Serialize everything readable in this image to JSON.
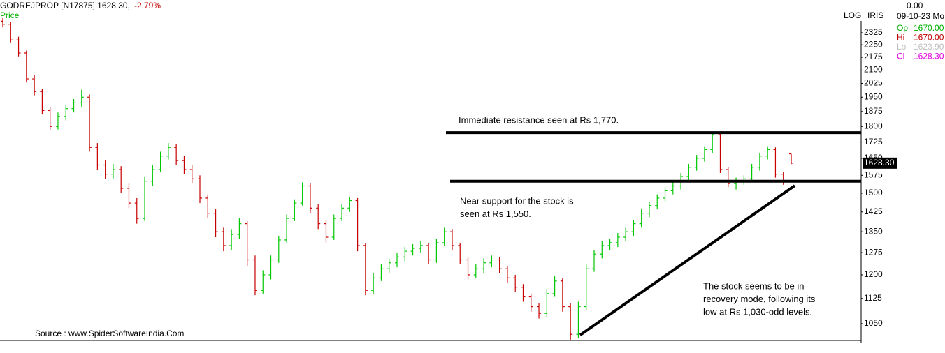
{
  "chart_data": {
    "type": "ohlc",
    "title": "GODREJPROP [N17875] 1628.30,",
    "change": "-2.79%",
    "series_name": "Price",
    "scale_label": "LOG",
    "indicator_label": "IRIS",
    "log_scale": true,
    "up_color": "#00c800",
    "down_color": "#c80000",
    "ylim": [
      1003,
      2543
    ],
    "yticks": [
      2325,
      2250,
      2175,
      2100,
      2025,
      1950,
      1875,
      1800,
      1725,
      1650,
      1575,
      1500,
      1425,
      1350,
      1275,
      1200,
      1125,
      1050
    ],
    "last_price_label": "1628.30",
    "info": {
      "value": "0.00",
      "date": "09-10-23 Mo",
      "rows": [
        [
          "Op",
          "1670.00"
        ],
        [
          "Hi",
          "1670.00"
        ],
        [
          "Lo",
          "1623.90"
        ],
        [
          "Cl",
          "1628.30"
        ]
      ]
    },
    "open": [
      2400,
      2380,
      2280,
      2200,
      2050,
      1980,
      1880,
      1800,
      1850,
      1890,
      1920,
      1950,
      1700,
      1620,
      1580,
      1600,
      1520,
      1460,
      1400,
      1550,
      1600,
      1660,
      1700,
      1640,
      1600,
      1560,
      1480,
      1420,
      1350,
      1300,
      1340,
      1380,
      1250,
      1150,
      1200,
      1250,
      1320,
      1400,
      1460,
      1530,
      1440,
      1380,
      1330,
      1400,
      1440,
      1470,
      1300,
      1150,
      1190,
      1220,
      1240,
      1260,
      1280,
      1290,
      1300,
      1250,
      1310,
      1350,
      1300,
      1250,
      1200,
      1220,
      1240,
      1250,
      1220,
      1190,
      1160,
      1130,
      1100,
      1080,
      1140,
      1180,
      1100,
      1020,
      1100,
      1220,
      1270,
      1300,
      1310,
      1330,
      1350,
      1380,
      1420,
      1450,
      1480,
      1510,
      1530,
      1570,
      1610,
      1650,
      1690,
      1760,
      1600,
      1540,
      1550,
      1560,
      1610,
      1660,
      1690,
      1580,
      1670
    ],
    "high": [
      2420,
      2395,
      2300,
      2215,
      2070,
      1995,
      1900,
      1870,
      1910,
      1940,
      1990,
      1965,
      1720,
      1640,
      1625,
      1615,
      1540,
      1480,
      1570,
      1620,
      1680,
      1720,
      1715,
      1660,
      1620,
      1575,
      1495,
      1435,
      1365,
      1360,
      1400,
      1390,
      1265,
      1215,
      1265,
      1335,
      1415,
      1475,
      1545,
      1540,
      1455,
      1395,
      1415,
      1455,
      1485,
      1480,
      1310,
      1205,
      1235,
      1255,
      1275,
      1295,
      1305,
      1315,
      1310,
      1325,
      1365,
      1360,
      1310,
      1260,
      1235,
      1255,
      1265,
      1260,
      1230,
      1200,
      1170,
      1140,
      1110,
      1155,
      1195,
      1190,
      1110,
      1115,
      1235,
      1285,
      1315,
      1325,
      1345,
      1365,
      1395,
      1435,
      1465,
      1495,
      1525,
      1545,
      1585,
      1625,
      1665,
      1705,
      1775,
      1770,
      1610,
      1565,
      1575,
      1625,
      1675,
      1705,
      1700,
      1590,
      1670
    ],
    "low": [
      2360,
      2265,
      2180,
      2030,
      1960,
      1860,
      1780,
      1785,
      1830,
      1870,
      1900,
      1680,
      1600,
      1560,
      1560,
      1500,
      1440,
      1380,
      1390,
      1530,
      1590,
      1645,
      1620,
      1580,
      1540,
      1460,
      1400,
      1330,
      1280,
      1285,
      1325,
      1230,
      1135,
      1140,
      1185,
      1240,
      1310,
      1390,
      1450,
      1420,
      1360,
      1310,
      1320,
      1390,
      1425,
      1280,
      1135,
      1140,
      1180,
      1205,
      1225,
      1245,
      1265,
      1275,
      1235,
      1240,
      1300,
      1285,
      1235,
      1185,
      1190,
      1205,
      1225,
      1205,
      1175,
      1145,
      1115,
      1085,
      1065,
      1070,
      1130,
      1085,
      1005,
      1010,
      1090,
      1210,
      1255,
      1285,
      1295,
      1315,
      1335,
      1365,
      1405,
      1435,
      1465,
      1495,
      1515,
      1555,
      1595,
      1635,
      1675,
      1585,
      1525,
      1515,
      1535,
      1545,
      1595,
      1645,
      1565,
      1535,
      1623.9
    ],
    "close": [
      2380,
      2280,
      2200,
      2050,
      1980,
      1880,
      1800,
      1850,
      1890,
      1920,
      1950,
      1700,
      1620,
      1580,
      1600,
      1520,
      1460,
      1400,
      1550,
      1600,
      1660,
      1700,
      1640,
      1600,
      1560,
      1480,
      1420,
      1350,
      1300,
      1340,
      1380,
      1250,
      1150,
      1200,
      1250,
      1320,
      1400,
      1460,
      1530,
      1440,
      1380,
      1330,
      1400,
      1440,
      1470,
      1300,
      1150,
      1190,
      1220,
      1240,
      1260,
      1280,
      1290,
      1300,
      1250,
      1310,
      1350,
      1300,
      1250,
      1200,
      1220,
      1240,
      1250,
      1220,
      1190,
      1160,
      1130,
      1100,
      1080,
      1140,
      1180,
      1100,
      1020,
      1100,
      1220,
      1270,
      1300,
      1310,
      1330,
      1350,
      1380,
      1420,
      1450,
      1480,
      1510,
      1530,
      1570,
      1610,
      1650,
      1690,
      1760,
      1600,
      1540,
      1550,
      1560,
      1610,
      1660,
      1690,
      1580,
      1550,
      1628.3
    ],
    "resistance_level": 1770,
    "support_level": 1550,
    "trendline": [
      1018,
      1531
    ],
    "annotations": {
      "resistance": [
        "Immediate resistance seen at Rs 1,770."
      ],
      "support": [
        "Near support for the stock is",
        "seen at Rs 1,550."
      ],
      "recovery": [
        "The stock seems to be in",
        "recovery mode, following its",
        "low at Rs 1,030-odd levels."
      ]
    },
    "source": "Source : www.SpiderSoftwareIndia.Com"
  }
}
